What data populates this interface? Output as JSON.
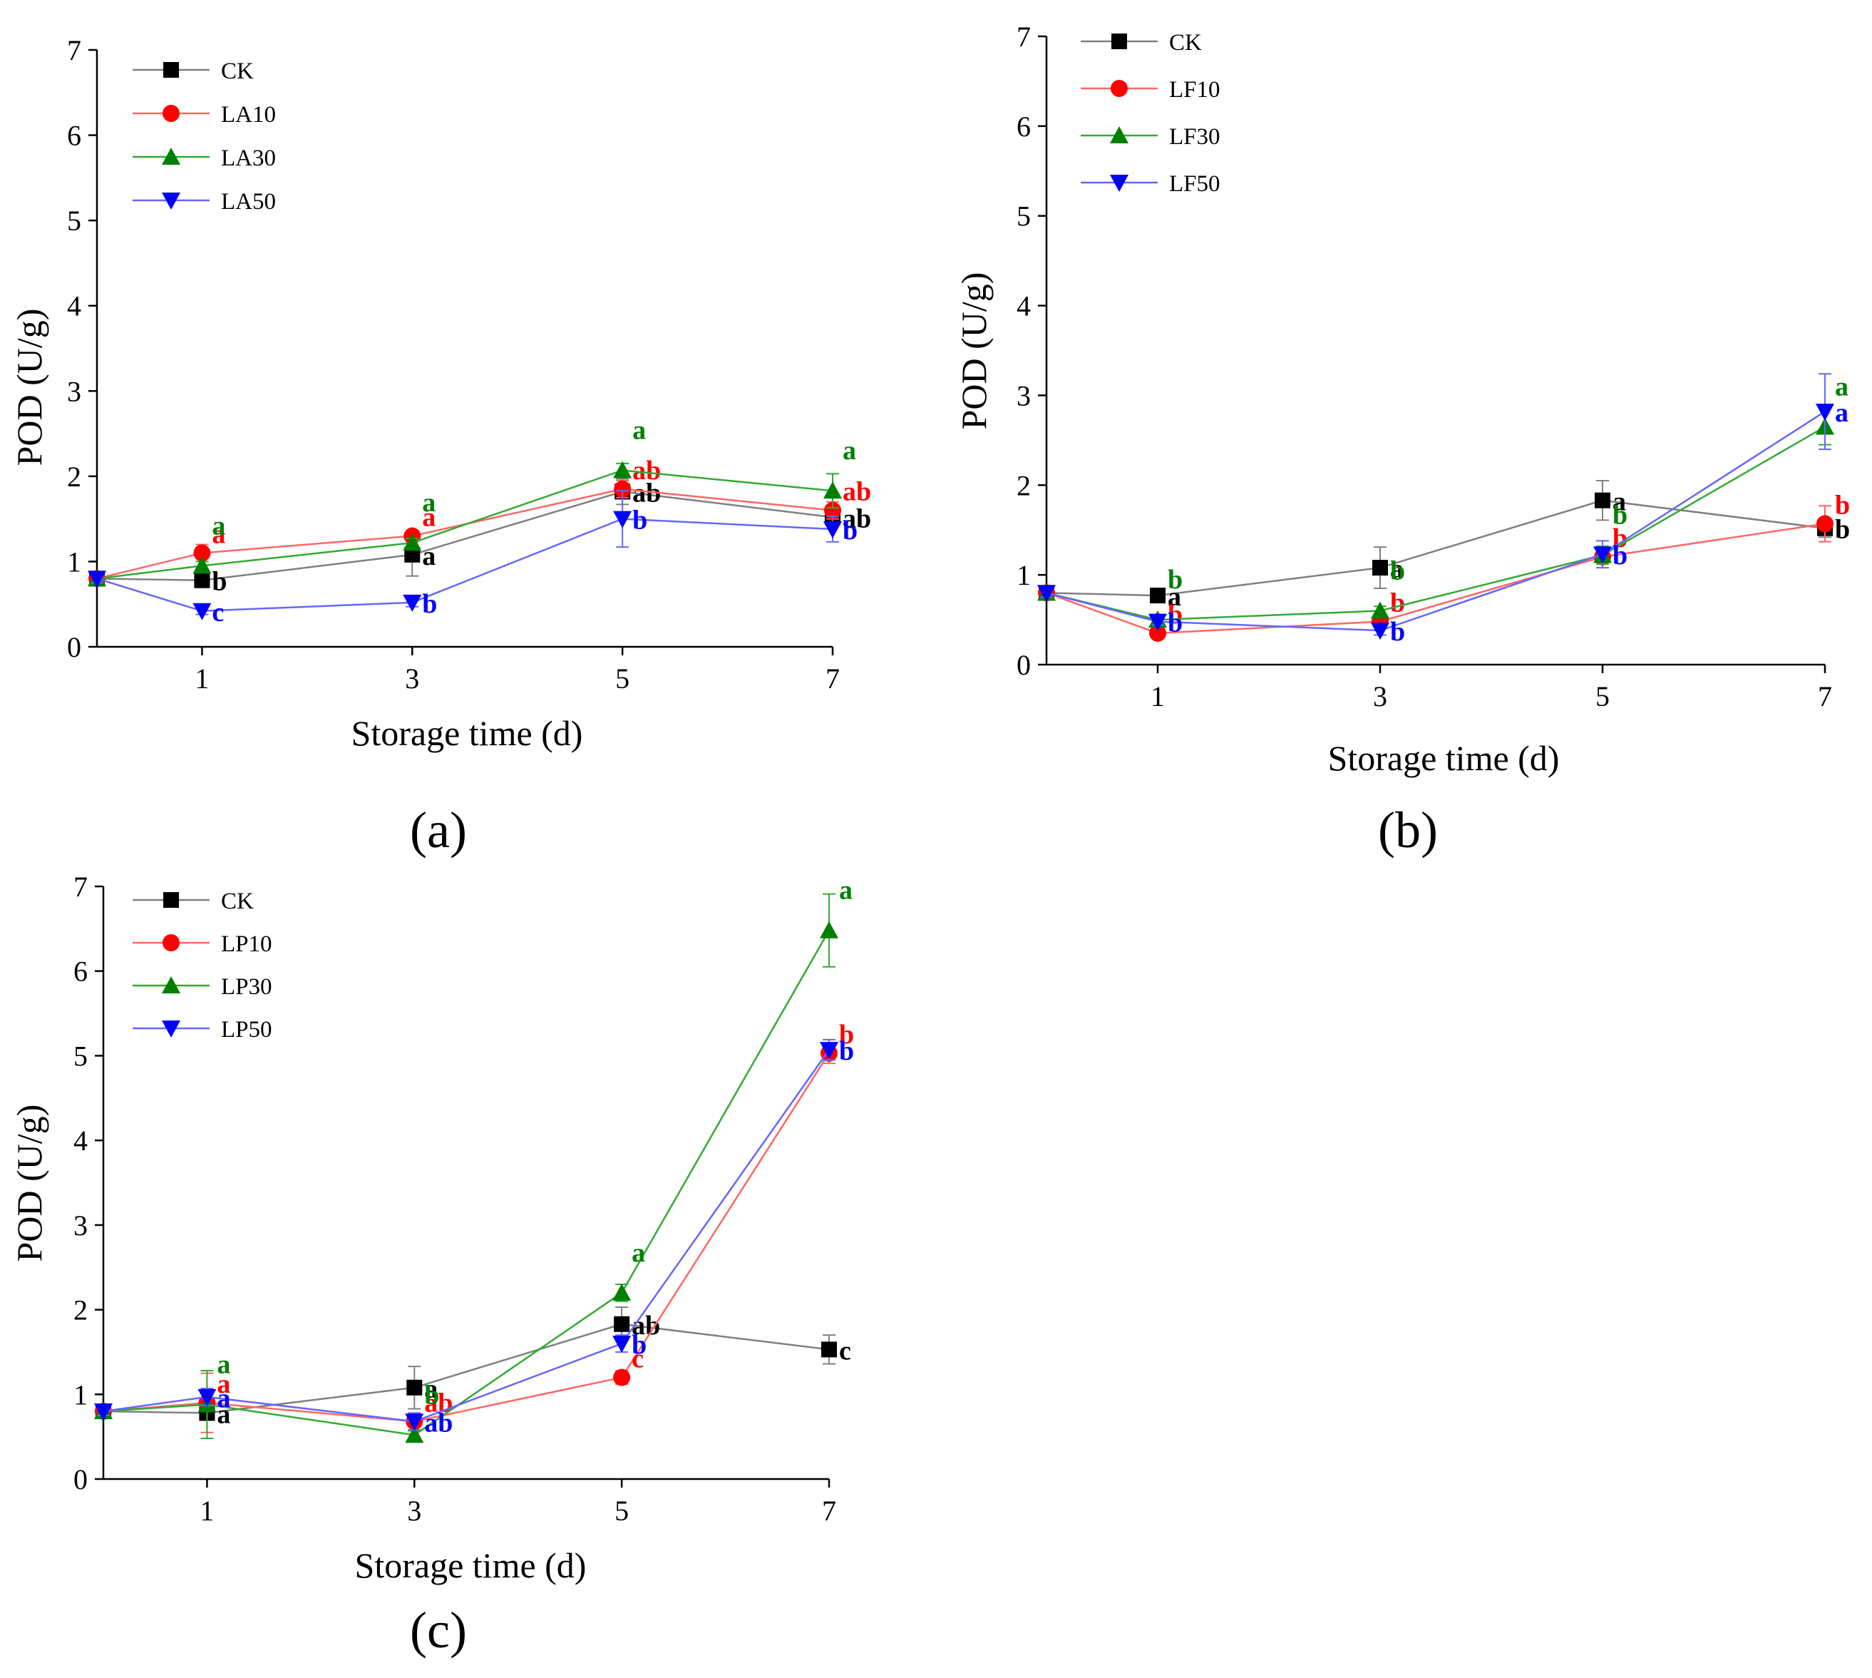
{
  "figure": {
    "panels": [
      {
        "label": "(a)",
        "chart_data": {
          "type": "line",
          "xlabel": "Storage time (d)",
          "ylabel": "POD (U/g)",
          "x": [
            0,
            1,
            3,
            5,
            7
          ],
          "x_ticks": [
            "1",
            "3",
            "5",
            "7"
          ],
          "y_ticks": [
            "0",
            "1",
            "2",
            "3",
            "4",
            "5",
            "6",
            "7"
          ],
          "xlim": [
            0,
            7
          ],
          "ylim": [
            0,
            7
          ],
          "grid": false,
          "legend_position": "top-left",
          "series": [
            {
              "name": "CK",
              "color": "#000000",
              "line_color": "#808080",
              "marker": "square",
              "values": [
                0.8,
                0.78,
                1.08,
                1.82,
                1.52
              ],
              "errors": [
                0.05,
                0.04,
                0.25,
                0.15,
                0.1
              ],
              "labels": [
                "",
                "b",
                "a",
                "ab",
                "ab"
              ]
            },
            {
              "name": "LA10",
              "color": "#ff0000",
              "line_color": "#ff6666",
              "marker": "circle",
              "values": [
                0.8,
                1.1,
                1.3,
                1.85,
                1.6
              ],
              "errors": [
                0.05,
                0.1,
                0.05,
                0.1,
                0.1
              ],
              "labels": [
                "",
                "a",
                "a",
                "ab",
                "ab"
              ]
            },
            {
              "name": "LA30",
              "color": "#008000",
              "line_color": "#33aa33",
              "marker": "triangle-up",
              "values": [
                0.8,
                0.95,
                1.22,
                2.07,
                1.83
              ],
              "errors": [
                0.05,
                0.05,
                0.05,
                0.08,
                0.2
              ],
              "labels": [
                "",
                "a",
                "a",
                "a",
                "a"
              ]
            },
            {
              "name": "LA50",
              "color": "#0000ff",
              "line_color": "#6666ff",
              "marker": "triangle-down",
              "values": [
                0.8,
                0.42,
                0.52,
                1.5,
                1.38
              ],
              "errors": [
                0.05,
                0.04,
                0.05,
                0.33,
                0.15
              ],
              "labels": [
                "",
                "c",
                "b",
                "b",
                "b"
              ]
            }
          ]
        }
      },
      {
        "label": "(b)",
        "chart_data": {
          "type": "line",
          "xlabel": "Storage time (d)",
          "ylabel": "POD (U/g)",
          "x": [
            0,
            1,
            3,
            5,
            7
          ],
          "x_ticks": [
            "1",
            "3",
            "5",
            "7"
          ],
          "y_ticks": [
            "0",
            "1",
            "2",
            "3",
            "4",
            "5",
            "6",
            "7"
          ],
          "xlim": [
            0,
            7
          ],
          "ylim": [
            0,
            7
          ],
          "grid": false,
          "legend_position": "top-left",
          "series": [
            {
              "name": "CK",
              "color": "#000000",
              "line_color": "#808080",
              "marker": "square",
              "values": [
                0.8,
                0.77,
                1.08,
                1.83,
                1.52
              ],
              "errors": [
                0.05,
                0.04,
                0.23,
                0.22,
                0.1
              ],
              "labels": [
                "",
                "a",
                "a",
                "a",
                "b"
              ]
            },
            {
              "name": "LF10",
              "color": "#ff0000",
              "line_color": "#ff6666",
              "marker": "circle",
              "values": [
                0.8,
                0.35,
                0.48,
                1.2,
                1.57
              ],
              "errors": [
                0.05,
                0.04,
                0.05,
                0.08,
                0.2
              ],
              "labels": [
                "",
                "b",
                "b",
                "b",
                "b"
              ]
            },
            {
              "name": "LF30",
              "color": "#008000",
              "line_color": "#33aa33",
              "marker": "triangle-up",
              "values": [
                0.8,
                0.5,
                0.6,
                1.22,
                2.65
              ],
              "errors": [
                0.05,
                0.04,
                0.05,
                0.1,
                0.2
              ],
              "labels": [
                "",
                "b",
                "b",
                "b",
                "a"
              ]
            },
            {
              "name": "LF50",
              "color": "#0000ff",
              "line_color": "#6666ff",
              "marker": "triangle-down",
              "values": [
                0.8,
                0.48,
                0.38,
                1.23,
                2.82
              ],
              "errors": [
                0.05,
                0.04,
                0.05,
                0.15,
                0.42
              ],
              "labels": [
                "",
                "b",
                "b",
                "b",
                "a"
              ]
            }
          ]
        }
      },
      {
        "label": "(c)",
        "chart_data": {
          "type": "line",
          "xlabel": "Storage time (d)",
          "ylabel": "POD (U/g)",
          "x": [
            0,
            1,
            3,
            5,
            7
          ],
          "x_ticks": [
            "1",
            "3",
            "5",
            "7"
          ],
          "y_ticks": [
            "0",
            "1",
            "2",
            "3",
            "4",
            "5",
            "6",
            "7"
          ],
          "xlim": [
            0,
            7
          ],
          "ylim": [
            0,
            7
          ],
          "grid": false,
          "legend_position": "top-left",
          "series": [
            {
              "name": "CK",
              "color": "#000000",
              "line_color": "#808080",
              "marker": "square",
              "values": [
                0.8,
                0.78,
                1.08,
                1.83,
                1.53
              ],
              "errors": [
                0.05,
                0.05,
                0.25,
                0.2,
                0.17
              ],
              "labels": [
                "",
                "a",
                "a",
                "ab",
                "c"
              ]
            },
            {
              "name": "LP10",
              "color": "#ff0000",
              "line_color": "#ff6666",
              "marker": "circle",
              "values": [
                0.8,
                0.9,
                0.68,
                1.2,
                5.03
              ],
              "errors": [
                0.05,
                0.35,
                0.1,
                0.08,
                0.12
              ],
              "labels": [
                "",
                "a",
                "ab",
                "c",
                "b"
              ]
            },
            {
              "name": "LP30",
              "color": "#008000",
              "line_color": "#33aa33",
              "marker": "triangle-up",
              "values": [
                0.8,
                0.88,
                0.52,
                2.2,
                6.48
              ],
              "errors": [
                0.05,
                0.4,
                0.05,
                0.1,
                0.43
              ],
              "labels": [
                "",
                "a",
                "b",
                "a",
                "a"
              ]
            },
            {
              "name": "LP50",
              "color": "#0000ff",
              "line_color": "#6666ff",
              "marker": "triangle-down",
              "values": [
                0.8,
                0.97,
                0.68,
                1.6,
                5.07
              ],
              "errors": [
                0.05,
                0.1,
                0.1,
                0.1,
                0.12
              ],
              "labels": [
                "",
                "a",
                "ab",
                "b",
                "b"
              ]
            }
          ]
        }
      }
    ]
  }
}
